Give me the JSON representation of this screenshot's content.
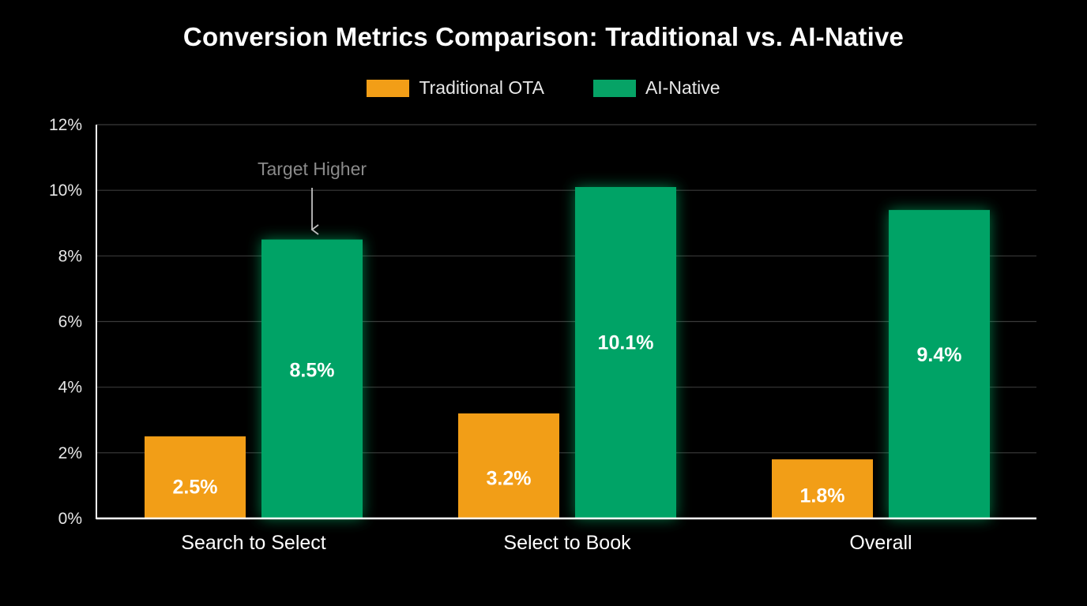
{
  "chart_data": {
    "type": "bar",
    "title": "Conversion Metrics Comparison: Traditional vs. AI-Native",
    "categories": [
      "Search to Select",
      "Select to Book",
      "Overall"
    ],
    "series": [
      {
        "name": "Traditional OTA",
        "color": "#f29e17",
        "values": [
          2.5,
          3.2,
          1.8
        ],
        "labels": [
          "2.5%",
          "3.2%",
          "1.8%"
        ]
      },
      {
        "name": "AI-Native",
        "color": "#06a366",
        "values": [
          8.5,
          10.1,
          9.4
        ],
        "labels": [
          "8.5%",
          "10.1%",
          "9.4%"
        ]
      }
    ],
    "ylim": [
      0,
      12
    ],
    "yticks": [
      0,
      2,
      4,
      6,
      8,
      10,
      12
    ],
    "ytick_labels": [
      "0%",
      "2%",
      "4%",
      "6%",
      "8%",
      "10%",
      "12%"
    ],
    "grid": true,
    "legend": "top-center",
    "annotation": {
      "text": "Target Higher",
      "category": "Search to Select",
      "series": "AI-Native"
    },
    "glow_color": "#10d47a",
    "grid_color": "#3a3a3a",
    "axis_color": "#ffffff"
  }
}
